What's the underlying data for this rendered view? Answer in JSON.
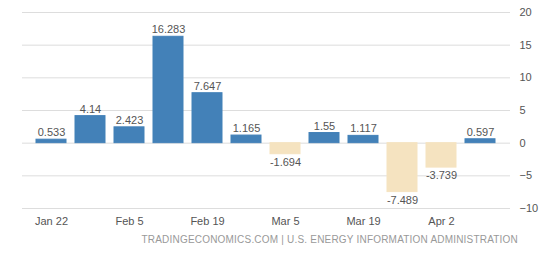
{
  "chart_data": {
    "type": "bar",
    "caption": "TRADINGECONOMICS.COM | U.S. ENERGY INFORMATION ADMINISTRATION",
    "categories": [
      "Jan 22",
      null,
      "Feb 5",
      null,
      "Feb 19",
      null,
      "Mar 5",
      null,
      "Mar 19",
      null,
      "Apr 2",
      null
    ],
    "values": [
      0.533,
      4.14,
      2.423,
      16.283,
      7.647,
      1.165,
      -1.694,
      1.55,
      1.117,
      -7.489,
      -3.739,
      0.597
    ],
    "colors": [
      "#4381b8",
      "#4381b8",
      "#4381b8",
      "#4381b8",
      "#4381b8",
      "#4381b8",
      "#f5e3c0",
      "#4381b8",
      "#4381b8",
      "#f5e3c0",
      "#f5e3c0",
      "#4381b8"
    ],
    "ylim": [
      -10,
      20
    ],
    "yticks": [
      -10,
      -5,
      0,
      5,
      10,
      15,
      20
    ],
    "grid": true,
    "data_labels": true
  }
}
